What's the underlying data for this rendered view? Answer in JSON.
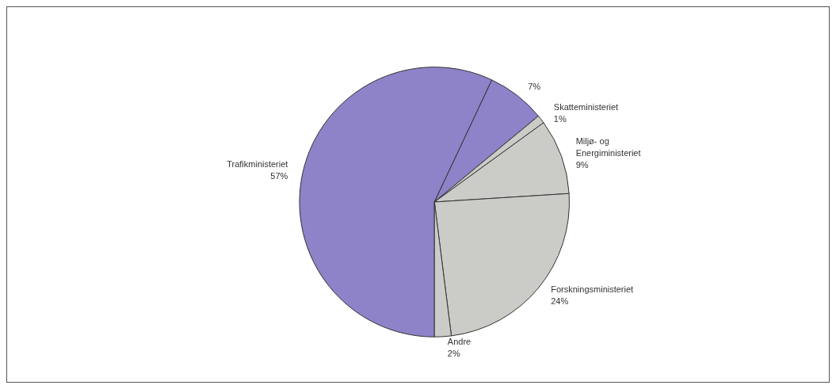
{
  "chart_data": {
    "type": "pie",
    "categories": [
      "Trafikministeriet",
      null,
      "Skatteministeriet",
      "Miljø- og\nEnergiministeriet",
      "Forskningsministeriet",
      "Andre"
    ],
    "values": [
      57,
      7,
      1,
      9,
      24,
      2
    ],
    "value_labels": [
      "57%",
      "7%",
      "1%",
      "9%",
      "24%",
      "2%"
    ],
    "colors": [
      "#8e82c8",
      "#8e82c8",
      "#cbcbc7",
      "#cbcbc7",
      "#cbcbc7",
      "#cbcbc7"
    ],
    "legend": false
  }
}
